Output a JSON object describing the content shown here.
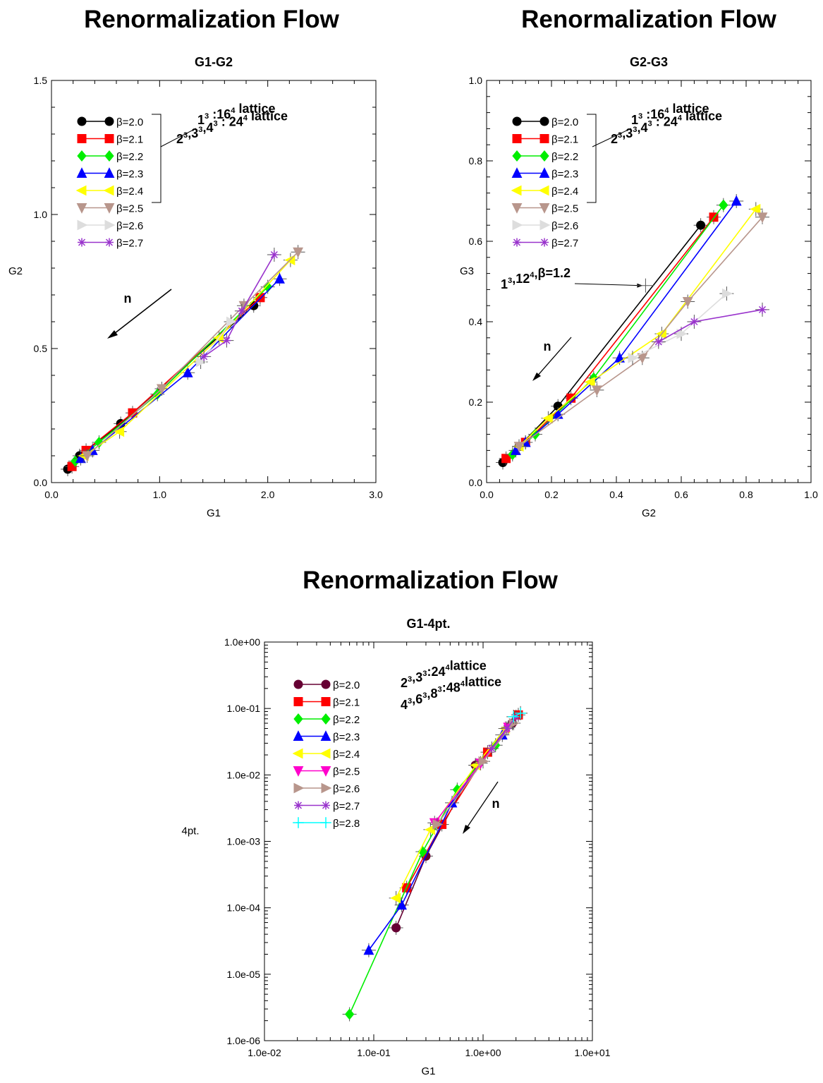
{
  "page_titles": [
    "Renormalization Flow",
    "Renormalization Flow",
    "Renormalization Flow"
  ],
  "chart_data": [
    {
      "type": "line",
      "title": "G1-G2",
      "xlabel": "G1",
      "ylabel": "G2",
      "xlim": [
        0,
        3
      ],
      "ylim": [
        0,
        1.5
      ],
      "xticks": [
        "0.0",
        "1.0",
        "2.0",
        "3.0"
      ],
      "yticks": [
        "0.0",
        "0.5",
        "1.0",
        "1.5"
      ],
      "grid": false,
      "legend_position": "top-left",
      "annotations": [
        {
          "lines": [
            "1^3 :16^4 lattice",
            "2^3,3^3,4^3 : 24^4 lattice"
          ]
        },
        {
          "text": "n",
          "arrow": "toward-lower-left"
        }
      ],
      "series": [
        {
          "name": "β=2.0",
          "color": "#000000",
          "marker": "circle",
          "x": [
            0.15,
            0.26,
            0.64,
            1.87
          ],
          "y": [
            0.05,
            0.1,
            0.22,
            0.66
          ]
        },
        {
          "name": "β=2.1",
          "color": "#ff0000",
          "marker": "square",
          "x": [
            0.19,
            0.32,
            0.75,
            1.93
          ],
          "y": [
            0.06,
            0.12,
            0.26,
            0.69
          ]
        },
        {
          "name": "β=2.2",
          "color": "#00ee00",
          "marker": "diamond",
          "x": [
            0.22,
            0.44,
            0.98,
            2.0
          ],
          "y": [
            0.08,
            0.15,
            0.33,
            0.73
          ]
        },
        {
          "name": "β=2.3",
          "color": "#0000ff",
          "marker": "triangle-up",
          "x": [
            0.27,
            0.38,
            1.26,
            2.11
          ],
          "y": [
            0.09,
            0.12,
            0.41,
            0.76
          ]
        },
        {
          "name": "β=2.4",
          "color": "#ffff00",
          "marker": "triangle-left",
          "x": [
            0.3,
            0.63,
            1.55,
            2.21
          ],
          "y": [
            0.1,
            0.19,
            0.54,
            0.83
          ]
        },
        {
          "name": "β=2.5",
          "color": "#b8968c",
          "marker": "triangle-down",
          "x": [
            0.33,
            1.02,
            1.78,
            2.28
          ],
          "y": [
            0.1,
            0.35,
            0.66,
            0.86
          ]
        },
        {
          "name": "β=2.6",
          "color": "#dddddd",
          "marker": "triangle-right",
          "x": [
            1.38,
            1.66
          ],
          "y": [
            0.45,
            0.6
          ]
        },
        {
          "name": "β=2.7",
          "color": "#9933cc",
          "marker": "asterisk",
          "x": [
            1.41,
            1.62,
            1.76,
            2.06
          ],
          "y": [
            0.47,
            0.53,
            0.64,
            0.85
          ]
        }
      ]
    },
    {
      "type": "line",
      "title": "G2-G3",
      "xlabel": "G2",
      "ylabel": "G3",
      "xlim": [
        0,
        1
      ],
      "ylim": [
        0,
        1
      ],
      "xticks": [
        "0.0",
        "0.2",
        "0.4",
        "0.6",
        "0.8",
        "1.0"
      ],
      "yticks": [
        "0.0",
        "0.2",
        "0.4",
        "0.6",
        "0.8",
        "1.0"
      ],
      "grid": false,
      "legend_position": "top-left",
      "annotations": [
        {
          "lines": [
            "1^3 :16^4 lattice",
            "2^3,3^3,4^3 : 24^4 lattice"
          ]
        },
        {
          "text": "1^3,12^4,β=1.2",
          "x": 0.49,
          "y": 0.49
        },
        {
          "text": "n",
          "arrow": "toward-lower-left"
        }
      ],
      "series": [
        {
          "name": "β=2.0",
          "color": "#000000",
          "marker": "circle",
          "x": [
            0.05,
            0.1,
            0.22,
            0.66
          ],
          "y": [
            0.05,
            0.09,
            0.19,
            0.64
          ]
        },
        {
          "name": "β=2.1",
          "color": "#ff0000",
          "marker": "square",
          "x": [
            0.06,
            0.12,
            0.26,
            0.7
          ],
          "y": [
            0.06,
            0.1,
            0.21,
            0.66
          ]
        },
        {
          "name": "β=2.2",
          "color": "#00ee00",
          "marker": "diamond",
          "x": [
            0.08,
            0.15,
            0.33,
            0.73
          ],
          "y": [
            0.07,
            0.12,
            0.26,
            0.69
          ]
        },
        {
          "name": "β=2.3",
          "color": "#0000ff",
          "marker": "triangle-up",
          "x": [
            0.09,
            0.12,
            0.22,
            0.41,
            0.77
          ],
          "y": [
            0.08,
            0.1,
            0.17,
            0.31,
            0.7
          ]
        },
        {
          "name": "β=2.4",
          "color": "#ffff00",
          "marker": "triangle-left",
          "x": [
            0.1,
            0.19,
            0.32,
            0.54,
            0.83
          ],
          "y": [
            0.09,
            0.16,
            0.25,
            0.37,
            0.68
          ]
        },
        {
          "name": "β=2.5",
          "color": "#b8968c",
          "marker": "triangle-down",
          "x": [
            0.1,
            0.34,
            0.48,
            0.62,
            0.85
          ],
          "y": [
            0.09,
            0.23,
            0.31,
            0.45,
            0.66
          ]
        },
        {
          "name": "β=2.6",
          "color": "#dddddd",
          "marker": "triangle-right",
          "x": [
            0.45,
            0.6,
            0.74
          ],
          "y": [
            0.31,
            0.37,
            0.47
          ]
        },
        {
          "name": "β=2.7",
          "color": "#9933cc",
          "marker": "asterisk",
          "x": [
            0.53,
            0.64,
            0.85
          ],
          "y": [
            0.35,
            0.4,
            0.43
          ]
        }
      ]
    },
    {
      "type": "line",
      "title": "G1-4pt.",
      "xlabel": "G1",
      "ylabel": "4pt.",
      "xscale": "log",
      "yscale": "log",
      "xlim": [
        0.01,
        10
      ],
      "ylim": [
        1e-06,
        1
      ],
      "xticks": [
        "1.0e-02",
        "1.0e-01",
        "1.0e+00",
        "1.0e+01"
      ],
      "yticks": [
        "1.0e-06",
        "1.0e-05",
        "1.0e-04",
        "1.0e-03",
        "1.0e-02",
        "1.0e-01",
        "1.0e+00"
      ],
      "grid": false,
      "legend_position": "top-left",
      "annotations": [
        {
          "lines": [
            "2^3,3^3:24^4lattice",
            "4^3,6^3,8^3:48^4lattice"
          ]
        },
        {
          "text": "n",
          "arrow": "toward-lower-left"
        }
      ],
      "series": [
        {
          "name": "β=2.0",
          "color": "#660033",
          "marker": "circle",
          "x": [
            0.16,
            0.3,
            0.85,
            1.85
          ],
          "y": [
            5e-05,
            0.0006,
            0.014,
            0.06
          ]
        },
        {
          "name": "β=2.1",
          "color": "#ff0000",
          "marker": "square",
          "x": [
            0.2,
            0.42,
            1.1,
            2.1
          ],
          "y": [
            0.0002,
            0.0018,
            0.022,
            0.08
          ]
        },
        {
          "name": "β=2.2",
          "color": "#00ee00",
          "marker": "diamond",
          "x": [
            0.06,
            0.28,
            0.58,
            1.3
          ],
          "y": [
            2.5e-06,
            0.0007,
            0.006,
            0.028
          ]
        },
        {
          "name": "β=2.3",
          "color": "#0000ff",
          "marker": "triangle-up",
          "x": [
            0.09,
            0.18,
            0.52,
            1.5
          ],
          "y": [
            2.3e-05,
            0.00011,
            0.0038,
            0.04
          ]
        },
        {
          "name": "β=2.4",
          "color": "#ffff00",
          "marker": "triangle-left",
          "x": [
            0.16,
            0.33,
            0.86,
            1.6
          ],
          "y": [
            0.00014,
            0.0015,
            0.014,
            0.05
          ]
        },
        {
          "name": "β=2.5",
          "color": "#ff00cc",
          "marker": "triangle-down",
          "x": [
            0.36,
            0.95,
            1.7
          ],
          "y": [
            0.0019,
            0.015,
            0.052
          ]
        },
        {
          "name": "β=2.6",
          "color": "#b8968c",
          "marker": "triangle-right",
          "x": [
            0.38,
            1.0,
            1.9
          ],
          "y": [
            0.0018,
            0.016,
            0.06
          ]
        },
        {
          "name": "β=2.7",
          "color": "#9933cc",
          "marker": "asterisk",
          "x": [
            1.2,
            1.65,
            2.0
          ],
          "y": [
            0.025,
            0.05,
            0.075
          ]
        },
        {
          "name": "β=2.8",
          "color": "#00ffff",
          "marker": "plus",
          "x": [
            1.9,
            2.2
          ],
          "y": [
            0.075,
            0.085
          ]
        }
      ]
    }
  ]
}
